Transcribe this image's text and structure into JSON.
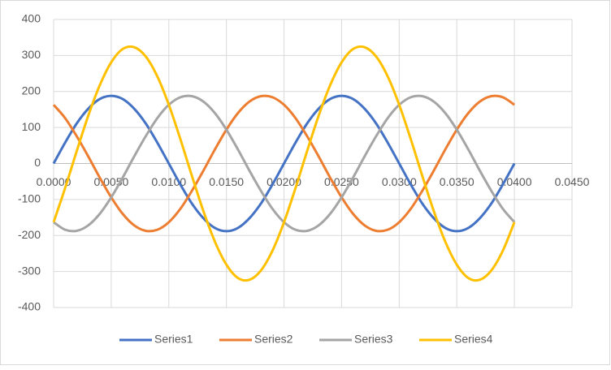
{
  "chart_data": {
    "type": "line",
    "x": [
      0,
      0.001,
      0.002,
      0.003,
      0.004,
      0.005,
      0.006,
      0.007,
      0.008,
      0.009,
      0.01,
      0.011,
      0.012,
      0.013,
      0.014,
      0.015,
      0.016,
      0.017,
      0.018,
      0.019,
      0.02,
      0.021,
      0.022,
      0.023,
      0.024,
      0.025,
      0.026,
      0.027,
      0.028,
      0.029,
      0.03,
      0.031,
      0.032,
      0.033,
      0.034,
      0.035,
      0.036,
      0.037,
      0.038,
      0.039,
      0.04
    ],
    "series": [
      {
        "name": "Series1",
        "color": "#4472c4",
        "values": [
          0,
          58,
          111,
          152,
          179,
          188,
          179,
          152,
          111,
          58,
          0,
          -58,
          -111,
          -152,
          -179,
          -188,
          -179,
          -152,
          -111,
          -58,
          0,
          58,
          111,
          152,
          179,
          188,
          179,
          152,
          111,
          58,
          0,
          -58,
          -111,
          -152,
          -179,
          -188,
          -179,
          -152,
          -111,
          -58,
          0
        ]
      },
      {
        "name": "Series2",
        "color": "#ed7d31",
        "values": [
          163,
          126,
          76,
          20,
          -39,
          -94,
          -140,
          -172,
          -187,
          -184,
          -163,
          -126,
          -76,
          -20,
          39,
          94,
          140,
          172,
          187,
          184,
          163,
          126,
          76,
          20,
          -39,
          -94,
          -140,
          -172,
          -187,
          -184,
          -163,
          -126,
          -76,
          -20,
          39,
          94,
          140,
          172,
          187,
          184,
          163
        ]
      },
      {
        "name": "Series3",
        "color": "#a5a5a5",
        "values": [
          -163,
          -184,
          -187,
          -172,
          -140,
          -94,
          -39,
          20,
          76,
          126,
          163,
          184,
          187,
          172,
          140,
          94,
          39,
          -20,
          -76,
          -126,
          -163,
          -184,
          -187,
          -172,
          -140,
          -94,
          -39,
          20,
          76,
          126,
          163,
          184,
          187,
          172,
          140,
          94,
          39,
          -20,
          -76,
          -126,
          -163
        ]
      },
      {
        "name": "Series4",
        "color": "#ffc000",
        "values": [
          -163,
          -68,
          34,
          132,
          217,
          281,
          318,
          323,
          297,
          242,
          163,
          68,
          -34,
          -132,
          -217,
          -281,
          -318,
          -323,
          -297,
          -242,
          -163,
          -68,
          34,
          132,
          217,
          281,
          318,
          323,
          297,
          242,
          163,
          68,
          -34,
          -132,
          -217,
          -281,
          -318,
          -323,
          -297,
          -242,
          -163
        ]
      }
    ],
    "xlim": [
      0,
      0.045
    ],
    "xticks": [
      {
        "value": 0,
        "label": "0.0000"
      },
      {
        "value": 0.005,
        "label": "0.0050"
      },
      {
        "value": 0.01,
        "label": "0.0100"
      },
      {
        "value": 0.015,
        "label": "0.0150"
      },
      {
        "value": 0.02,
        "label": "0.0200"
      },
      {
        "value": 0.025,
        "label": "0.0250"
      },
      {
        "value": 0.03,
        "label": "0.0300"
      },
      {
        "value": 0.035,
        "label": "0.0350"
      },
      {
        "value": 0.04,
        "label": "0.0400"
      },
      {
        "value": 0.045,
        "label": "0.0450"
      }
    ],
    "ylim": [
      -400,
      400
    ],
    "yticks": [
      -400,
      -300,
      -200,
      -100,
      0,
      100,
      200,
      300,
      400
    ],
    "grid": true,
    "legend": "bottom"
  }
}
